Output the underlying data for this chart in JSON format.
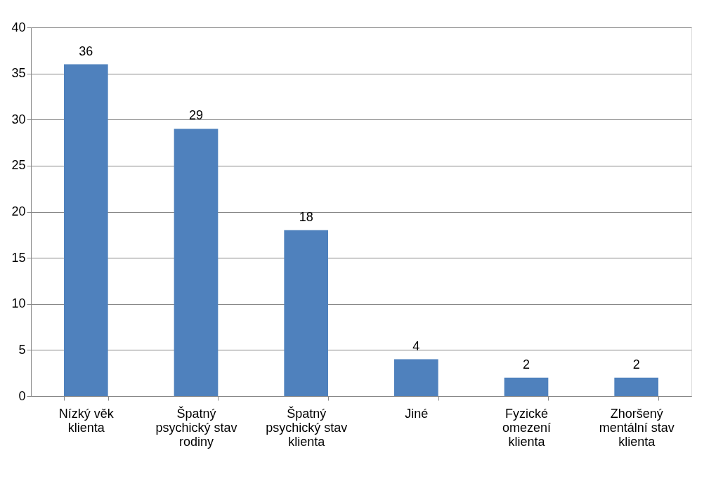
{
  "chart_data": {
    "type": "bar",
    "categories": [
      "Nízký věk\nklienta",
      "Špatný\npsychický stav\nrodiny",
      "Špatný\npsychický stav\nklienta",
      "Jiné",
      "Fyzické\nomezení\nklienta",
      "Zhoršený\nmentální stav\nklienta"
    ],
    "values": [
      36,
      29,
      18,
      4,
      2,
      2
    ],
    "color": "#4f81bd",
    "ylim": [
      0,
      40
    ],
    "yticks": [
      0,
      5,
      10,
      15,
      20,
      25,
      30,
      35,
      40
    ],
    "grid": "y",
    "data_labels": true
  }
}
